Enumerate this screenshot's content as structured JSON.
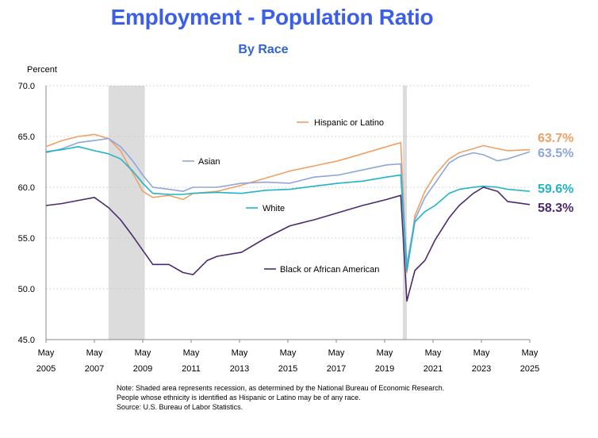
{
  "title": "Employment - Population Ratio",
  "subtitle": "By Race",
  "colors": {
    "hispanic": "#F0A064",
    "asian": "#8FA6DC",
    "white": "#1FB5C8",
    "black": "#4B2A6E",
    "recession": "#DCDCDC",
    "grid": "#C8C8C8"
  },
  "notes": [
    "Note: Shaded area represents recession, as determined by the National Bureau of Economic Research.",
    "People whose ethnicity is identified as Hispanic or Latino may be of any race.",
    "Source: U.S. Bureau of Labor Statistics."
  ],
  "chart_data": {
    "type": "line",
    "title": "Employment - Population Ratio",
    "subtitle": "By Race",
    "ylabel": "Percent",
    "xlabel": "",
    "ylim": [
      45,
      70
    ],
    "yticks": [
      45.0,
      50.0,
      55.0,
      60.0,
      65.0,
      70.0
    ],
    "ytick_labels": [
      "45.0",
      "50.0",
      "55.0",
      "60.0",
      "65.0",
      "70.0"
    ],
    "xlim": [
      "2005-05",
      "2025-05"
    ],
    "xticks": [
      "2005-05",
      "2007-05",
      "2009-05",
      "2011-05",
      "2013-05",
      "2015-05",
      "2017-05",
      "2019-05",
      "2021-05",
      "2023-05",
      "2025-05"
    ],
    "xtick_labels": [
      [
        "May",
        "2005"
      ],
      [
        "May",
        "2007"
      ],
      [
        "May",
        "2009"
      ],
      [
        "May",
        "2011"
      ],
      [
        "May",
        "2013"
      ],
      [
        "May",
        "2015"
      ],
      [
        "May",
        "2017"
      ],
      [
        "May",
        "2019"
      ],
      [
        "May",
        "2021"
      ],
      [
        "May",
        "2023"
      ],
      [
        "May",
        "2025"
      ]
    ],
    "grid": "horizontal dotted",
    "recessions": [
      {
        "start": "2007-12",
        "end": "2009-06"
      },
      {
        "start": "2020-02",
        "end": "2020-04"
      }
    ],
    "series": [
      {
        "name": "Hispanic or Latino",
        "key": "hispanic",
        "end_label": "63.7%",
        "points": [
          [
            "2005-05",
            64.0
          ],
          [
            "2006-01",
            64.6
          ],
          [
            "2006-09",
            65.0
          ],
          [
            "2007-05",
            65.2
          ],
          [
            "2007-12",
            64.8
          ],
          [
            "2008-06",
            63.6
          ],
          [
            "2008-12",
            61.4
          ],
          [
            "2009-05",
            59.6
          ],
          [
            "2009-10",
            59.0
          ],
          [
            "2010-06",
            59.2
          ],
          [
            "2011-01",
            58.8
          ],
          [
            "2011-06",
            59.4
          ],
          [
            "2012-06",
            59.6
          ],
          [
            "2013-06",
            60.2
          ],
          [
            "2014-06",
            60.9
          ],
          [
            "2015-06",
            61.6
          ],
          [
            "2016-06",
            62.1
          ],
          [
            "2017-06",
            62.6
          ],
          [
            "2018-06",
            63.3
          ],
          [
            "2019-06",
            64.0
          ],
          [
            "2020-01",
            64.4
          ],
          [
            "2020-04",
            51.6
          ],
          [
            "2020-08",
            57.2
          ],
          [
            "2021-01",
            59.6
          ],
          [
            "2021-06",
            61.2
          ],
          [
            "2022-01",
            62.8
          ],
          [
            "2022-06",
            63.4
          ],
          [
            "2023-01",
            63.8
          ],
          [
            "2023-06",
            64.1
          ],
          [
            "2024-01",
            63.8
          ],
          [
            "2024-06",
            63.6
          ],
          [
            "2025-05",
            63.7
          ]
        ]
      },
      {
        "name": "Asian",
        "key": "asian",
        "end_label": "63.5%",
        "points": [
          [
            "2005-05",
            63.4
          ],
          [
            "2006-01",
            63.8
          ],
          [
            "2006-09",
            64.4
          ],
          [
            "2007-05",
            64.6
          ],
          [
            "2007-12",
            64.8
          ],
          [
            "2008-06",
            64.0
          ],
          [
            "2008-12",
            62.6
          ],
          [
            "2009-05",
            61.2
          ],
          [
            "2009-10",
            60.0
          ],
          [
            "2010-06",
            59.8
          ],
          [
            "2011-01",
            59.6
          ],
          [
            "2011-06",
            60.0
          ],
          [
            "2012-06",
            60.0
          ],
          [
            "2013-06",
            60.4
          ],
          [
            "2014-06",
            60.5
          ],
          [
            "2015-06",
            60.4
          ],
          [
            "2016-06",
            61.0
          ],
          [
            "2017-06",
            61.2
          ],
          [
            "2018-06",
            61.7
          ],
          [
            "2019-06",
            62.2
          ],
          [
            "2020-01",
            62.3
          ],
          [
            "2020-04",
            52.4
          ],
          [
            "2020-08",
            56.8
          ],
          [
            "2021-01",
            59.0
          ],
          [
            "2021-06",
            60.4
          ],
          [
            "2022-01",
            62.4
          ],
          [
            "2022-06",
            63.0
          ],
          [
            "2023-01",
            63.4
          ],
          [
            "2023-06",
            63.2
          ],
          [
            "2024-01",
            62.6
          ],
          [
            "2024-06",
            62.8
          ],
          [
            "2025-05",
            63.5
          ]
        ]
      },
      {
        "name": "White",
        "key": "white",
        "end_label": "59.6%",
        "points": [
          [
            "2005-05",
            63.5
          ],
          [
            "2006-01",
            63.7
          ],
          [
            "2006-09",
            64.0
          ],
          [
            "2007-05",
            63.6
          ],
          [
            "2007-12",
            63.3
          ],
          [
            "2008-06",
            62.8
          ],
          [
            "2008-12",
            61.6
          ],
          [
            "2009-05",
            60.4
          ],
          [
            "2009-10",
            59.4
          ],
          [
            "2010-06",
            59.3
          ],
          [
            "2011-01",
            59.3
          ],
          [
            "2011-06",
            59.4
          ],
          [
            "2012-06",
            59.5
          ],
          [
            "2013-06",
            59.4
          ],
          [
            "2014-06",
            59.7
          ],
          [
            "2015-06",
            59.8
          ],
          [
            "2016-06",
            60.1
          ],
          [
            "2017-06",
            60.4
          ],
          [
            "2018-06",
            60.6
          ],
          [
            "2019-06",
            61.0
          ],
          [
            "2020-01",
            61.2
          ],
          [
            "2020-04",
            51.8
          ],
          [
            "2020-08",
            56.6
          ],
          [
            "2021-01",
            57.6
          ],
          [
            "2021-06",
            58.2
          ],
          [
            "2022-01",
            59.4
          ],
          [
            "2022-06",
            59.8
          ],
          [
            "2023-01",
            60.0
          ],
          [
            "2023-06",
            60.1
          ],
          [
            "2024-01",
            60.0
          ],
          [
            "2024-06",
            59.8
          ],
          [
            "2025-05",
            59.6
          ]
        ]
      },
      {
        "name": "Black or African American",
        "key": "black",
        "end_label": "58.3%",
        "points": [
          [
            "2005-05",
            58.2
          ],
          [
            "2006-01",
            58.4
          ],
          [
            "2006-09",
            58.7
          ],
          [
            "2007-05",
            59.0
          ],
          [
            "2007-12",
            58.0
          ],
          [
            "2008-06",
            56.8
          ],
          [
            "2008-12",
            55.2
          ],
          [
            "2009-05",
            53.8
          ],
          [
            "2009-10",
            52.4
          ],
          [
            "2010-06",
            52.4
          ],
          [
            "2011-01",
            51.6
          ],
          [
            "2011-06",
            51.4
          ],
          [
            "2012-01",
            52.8
          ],
          [
            "2012-06",
            53.2
          ],
          [
            "2013-06",
            53.6
          ],
          [
            "2014-06",
            55.0
          ],
          [
            "2015-06",
            56.2
          ],
          [
            "2016-06",
            56.8
          ],
          [
            "2017-06",
            57.5
          ],
          [
            "2018-06",
            58.2
          ],
          [
            "2019-06",
            58.8
          ],
          [
            "2020-01",
            59.2
          ],
          [
            "2020-04",
            48.8
          ],
          [
            "2020-08",
            51.8
          ],
          [
            "2021-01",
            52.8
          ],
          [
            "2021-06",
            54.8
          ],
          [
            "2022-01",
            57.0
          ],
          [
            "2022-06",
            58.2
          ],
          [
            "2023-01",
            59.4
          ],
          [
            "2023-06",
            60.0
          ],
          [
            "2024-01",
            59.6
          ],
          [
            "2024-06",
            58.6
          ],
          [
            "2025-05",
            58.3
          ]
        ]
      }
    ]
  }
}
